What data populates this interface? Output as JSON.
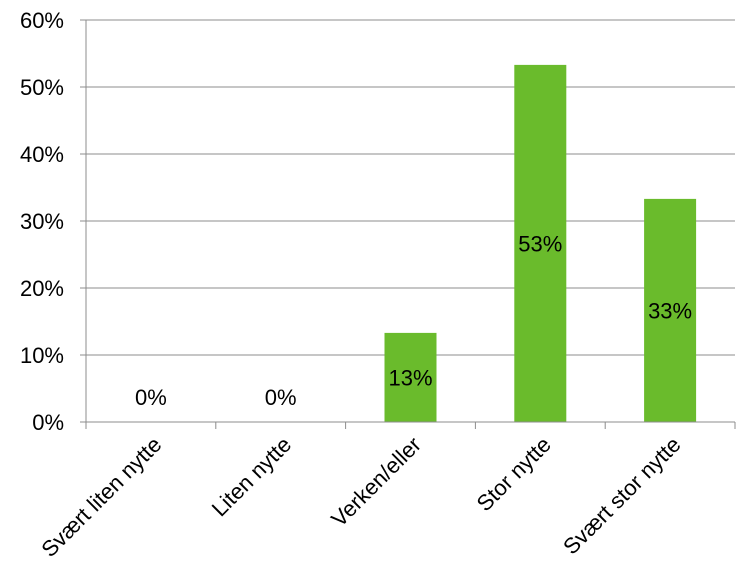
{
  "chart_data": {
    "type": "bar",
    "categories": [
      "Svært liten nytte",
      "Liten nytte",
      "Verken/eller",
      "Stor nytte",
      "Svært stor nytte"
    ],
    "values": [
      0,
      0,
      13.3,
      53.3,
      33.3
    ],
    "data_labels": [
      "0%",
      "0%",
      "13%",
      "53%",
      "33%"
    ],
    "y_ticks": [
      "0%",
      "10%",
      "20%",
      "30%",
      "40%",
      "50%",
      "60%"
    ],
    "ylim": [
      0,
      60
    ],
    "grid": true,
    "legend": "none",
    "bar_color": "#6ABB2C",
    "title": "",
    "xlabel": "",
    "ylabel": ""
  }
}
